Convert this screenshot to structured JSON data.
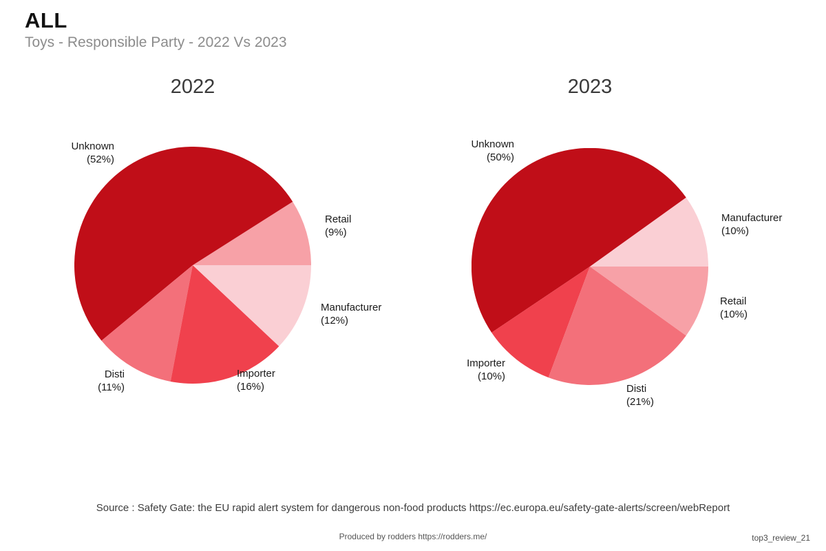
{
  "header": {
    "title": "ALL",
    "subtitle": "Toys - Responsible Party - 2022 Vs 2023"
  },
  "footer": {
    "source_line1": "Source : Safety Gate: the EU rapid alert system for dangerous non-food products",
    "source_line2": "https://ec.europa.eu/safety-gate-alerts/screen/webReport",
    "produced_by": "Produced by rodders https://rodders.me/",
    "reference": "top3_review_21"
  },
  "palette": {
    "unknown": "#c00e18",
    "importer": "#f0414d",
    "disti": "#f3707a",
    "retail": "#f7a1a7",
    "manufacturer": "#facfd4"
  },
  "chart_data": [
    {
      "type": "pie",
      "title": "2022",
      "unit": "percent",
      "layout": {
        "start_angle_deg": 0,
        "direction": "counterclockwise",
        "labels_position": "outside",
        "legend": "none"
      },
      "slices": [
        {
          "label": "Retail",
          "value": 9,
          "pct_label": "(9%)",
          "color": "#f7a1a7"
        },
        {
          "label": "Unknown",
          "value": 52,
          "pct_label": "(52%)",
          "color": "#c00e18"
        },
        {
          "label": "Disti",
          "value": 11,
          "pct_label": "(11%)",
          "color": "#f3707a"
        },
        {
          "label": "Importer",
          "value": 16,
          "pct_label": "(16%)",
          "color": "#f0414d"
        },
        {
          "label": "Manufacturer",
          "value": 12,
          "pct_label": "(12%)",
          "color": "#facfd4"
        }
      ]
    },
    {
      "type": "pie",
      "title": "2023",
      "unit": "percent",
      "layout": {
        "start_angle_deg": 0,
        "direction": "counterclockwise",
        "labels_position": "outside",
        "legend": "none"
      },
      "slices": [
        {
          "label": "Manufacturer",
          "value": 10,
          "pct_label": "(10%)",
          "color": "#facfd4"
        },
        {
          "label": "Unknown",
          "value": 50,
          "pct_label": "(50%)",
          "color": "#c00e18"
        },
        {
          "label": "Importer",
          "value": 10,
          "pct_label": "(10%)",
          "color": "#f0414d"
        },
        {
          "label": "Disti",
          "value": 21,
          "pct_label": "(21%)",
          "color": "#f3707a"
        },
        {
          "label": "Retail",
          "value": 10,
          "pct_label": "(10%)",
          "color": "#f7a1a7"
        }
      ]
    }
  ]
}
